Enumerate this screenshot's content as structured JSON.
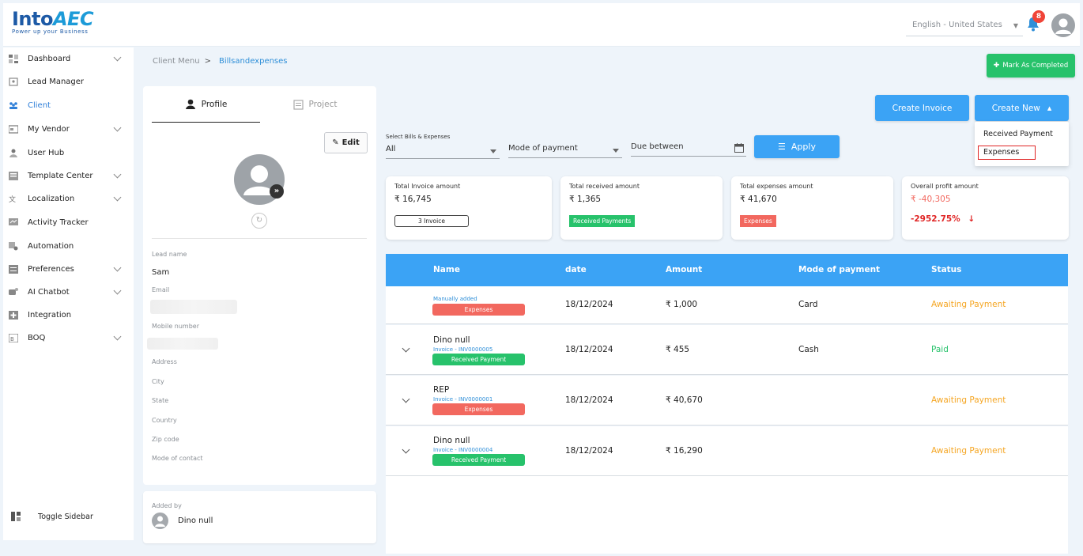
{
  "header": {
    "logo_main": "Into",
    "logo_accent": "AEC",
    "logo_tagline": "Power up your Business",
    "language": "English - United States",
    "notification_count": "8"
  },
  "sidebar": {
    "items": [
      {
        "label": "Dashboard",
        "icon": "dashboard-icon",
        "chevron": true
      },
      {
        "label": "Lead Manager",
        "icon": "lead-manager-icon",
        "chevron": false
      },
      {
        "label": "Client",
        "icon": "client-icon",
        "chevron": false,
        "active": true
      },
      {
        "label": "My Vendor",
        "icon": "vendor-icon",
        "chevron": true
      },
      {
        "label": "User Hub",
        "icon": "user-hub-icon",
        "chevron": false
      },
      {
        "label": "Template Center",
        "icon": "template-icon",
        "chevron": true
      },
      {
        "label": "Localization",
        "icon": "localization-icon",
        "chevron": true
      },
      {
        "label": "Activity Tracker",
        "icon": "activity-icon",
        "chevron": false
      },
      {
        "label": "Automation",
        "icon": "automation-icon",
        "chevron": false
      },
      {
        "label": "Preferences",
        "icon": "preferences-icon",
        "chevron": true
      },
      {
        "label": "AI Chatbot",
        "icon": "chatbot-icon",
        "chevron": true
      },
      {
        "label": "Integration",
        "icon": "integration-icon",
        "chevron": false
      },
      {
        "label": "BOQ",
        "icon": "boq-icon",
        "chevron": true
      }
    ],
    "toggle_label": "Toggle Sidebar"
  },
  "breadcrumb": {
    "root": "Client Menu",
    "current": "Billsandexpenses"
  },
  "mark_completed_label": "Mark As Completed",
  "profile": {
    "tab_profile": "Profile",
    "tab_project": "Project",
    "edit_label": "Edit",
    "fields": {
      "lead_name_label": "Lead name",
      "lead_name_value": "Sam",
      "email_label": "Email",
      "mobile_label": "Mobile number",
      "address_label": "Address",
      "city_label": "City",
      "state_label": "State",
      "country_label": "Country",
      "zip_label": "Zip code",
      "contact_label": "Mode of contact"
    },
    "added_by_label": "Added by",
    "added_by_name": "Dino null"
  },
  "actions": {
    "create_invoice": "Create Invoice",
    "create_new": "Create New",
    "dropdown_items": [
      "Received Payment",
      "Expenses"
    ]
  },
  "filters": {
    "select_label": "Select Bills & Expenses",
    "select_value": "All",
    "mode_placeholder": "Mode of payment",
    "due_placeholder": "Due between",
    "apply_label": "Apply"
  },
  "stats": [
    {
      "title": "Total Invoice amount",
      "value": "₹ 16,745",
      "tag": "3 Invoice"
    },
    {
      "title": "Total received amount",
      "value": "₹ 1,365",
      "tag": "Received Payments"
    },
    {
      "title": "Total expenses amount",
      "value": "₹ 41,670",
      "tag": "Expenses"
    },
    {
      "title": "Overall profit amount",
      "value": "₹ -40,305",
      "tag": "-2952.75%"
    }
  ],
  "table": {
    "headers": [
      "Name",
      "date",
      "Amount",
      "Mode of payment",
      "Status"
    ],
    "rows": [
      {
        "name": "",
        "sub": "Manually added",
        "pill": "Expenses",
        "date": "18/12/2024",
        "amount": "₹ 1,000",
        "mode": "Card",
        "status": "Awaiting Payment"
      },
      {
        "name": "Dino null",
        "sub": "Invoice - INV0000005",
        "pill": "Received Payment",
        "date": "18/12/2024",
        "amount": "₹ 455",
        "mode": "Cash",
        "status": "Paid"
      },
      {
        "name": "REP",
        "sub": "Invoice - INV0000001",
        "pill": "Expenses",
        "date": "18/12/2024",
        "amount": "₹ 40,670",
        "mode": "",
        "status": "Awaiting Payment"
      },
      {
        "name": "Dino null",
        "sub": "Invoice - INV0000004",
        "pill": "Received Payment",
        "date": "18/12/2024",
        "amount": "₹ 16,290",
        "mode": "",
        "status": "Awaiting Payment"
      }
    ]
  },
  "colors": {
    "accent": "#3ba3f5",
    "success": "#27c26b",
    "danger": "#f2685f",
    "warning": "#f5a623"
  }
}
